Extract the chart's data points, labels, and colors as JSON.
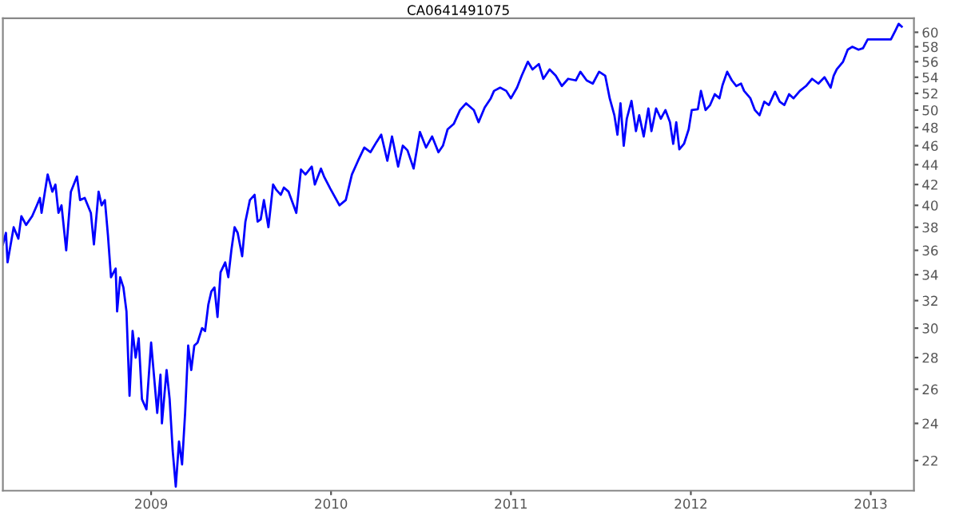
{
  "chart_data": {
    "type": "line",
    "title": "CA0641491075",
    "x": [
      2008.176,
      2008.193,
      2008.202,
      2008.236,
      2008.262,
      2008.279,
      2008.305,
      2008.339,
      2008.365,
      2008.382,
      2008.391,
      2008.425,
      2008.451,
      2008.468,
      2008.485,
      2008.502,
      2008.528,
      2008.554,
      2008.588,
      2008.605,
      2008.631,
      2008.665,
      2008.682,
      2008.708,
      2008.725,
      2008.743,
      2008.76,
      2008.777,
      2008.803,
      2008.811,
      2008.828,
      2008.846,
      2008.863,
      2008.88,
      2008.897,
      2008.914,
      2008.931,
      2008.949,
      2008.974,
      2009.0,
      2009.017,
      2009.034,
      2009.052,
      2009.06,
      2009.086,
      2009.103,
      2009.12,
      2009.137,
      2009.155,
      2009.172,
      2009.189,
      2009.206,
      2009.223,
      2009.24,
      2009.258,
      2009.283,
      2009.3,
      2009.318,
      2009.335,
      2009.352,
      2009.369,
      2009.386,
      2009.412,
      2009.429,
      2009.446,
      2009.464,
      2009.481,
      2009.506,
      2009.524,
      2009.549,
      2009.575,
      2009.592,
      2009.609,
      2009.627,
      2009.652,
      2009.678,
      2009.695,
      2009.721,
      2009.738,
      2009.764,
      2009.807,
      2009.833,
      2009.858,
      2009.893,
      2009.91,
      2009.944,
      2009.961,
      2009.996,
      2010.047,
      2010.082,
      2010.116,
      2010.15,
      2010.185,
      2010.219,
      2010.253,
      2010.279,
      2010.313,
      2010.339,
      2010.373,
      2010.399,
      2010.425,
      2010.459,
      2010.494,
      2010.528,
      2010.562,
      2010.597,
      2010.622,
      2010.648,
      2010.682,
      2010.717,
      2010.751,
      2010.794,
      2010.82,
      2010.854,
      2010.888,
      2010.906,
      2010.94,
      2010.974,
      2011.0,
      2011.034,
      2011.06,
      2011.094,
      2011.12,
      2011.155,
      2011.18,
      2011.215,
      2011.249,
      2011.283,
      2011.318,
      2011.361,
      2011.386,
      2011.421,
      2011.455,
      2011.49,
      2011.524,
      2011.549,
      2011.575,
      2011.592,
      2011.609,
      2011.627,
      2011.644,
      2011.67,
      2011.695,
      2011.713,
      2011.738,
      2011.764,
      2011.781,
      2011.807,
      2011.833,
      2011.859,
      2011.884,
      2011.902,
      2011.919,
      2011.936,
      2011.962,
      2011.988,
      2012.005,
      2012.039,
      2012.056,
      2012.082,
      2012.107,
      2012.133,
      2012.159,
      2012.176,
      2012.202,
      2012.228,
      2012.253,
      2012.279,
      2012.296,
      2012.331,
      2012.356,
      2012.382,
      2012.408,
      2012.434,
      2012.468,
      2012.494,
      2012.52,
      2012.546,
      2012.571,
      2012.606,
      2012.64,
      2012.674,
      2012.709,
      2012.743,
      2012.777,
      2012.794,
      2012.811,
      2012.846,
      2012.872,
      2012.897,
      2012.932,
      2012.957,
      2012.983,
      2013.017,
      2013.112,
      2013.138,
      2013.155,
      2013.172
    ],
    "series": [
      {
        "color": "#0000ff",
        "values": [
          36.5,
          37.5,
          35,
          38,
          37,
          39,
          38.2,
          39,
          40,
          40.7,
          39.3,
          43,
          41.3,
          42,
          39.3,
          40,
          36,
          41.3,
          42.8,
          40.5,
          40.7,
          39.3,
          36.5,
          41.3,
          40,
          40.5,
          37.3,
          33.8,
          34.5,
          31.2,
          33.8,
          33,
          31.2,
          25.6,
          29.8,
          28,
          29.3,
          25.4,
          24.8,
          29,
          26.7,
          24.6,
          26.9,
          24,
          27.2,
          25.4,
          22.5,
          20.7,
          23,
          21.8,
          24.6,
          28.8,
          27.2,
          28.8,
          29,
          30,
          29.8,
          31.7,
          32.7,
          33,
          30.8,
          34.2,
          35,
          33.8,
          36,
          38,
          37.5,
          35.5,
          38.5,
          40.5,
          41,
          38.5,
          38.7,
          40.5,
          38,
          42,
          41.5,
          41,
          41.7,
          41.3,
          39.3,
          43.5,
          43,
          43.8,
          42,
          43.6,
          42.8,
          41.6,
          40,
          40.5,
          43,
          44.4,
          45.8,
          45.3,
          46.4,
          47.2,
          44.4,
          47,
          43.8,
          46,
          45.5,
          43.6,
          47.5,
          45.8,
          47,
          45.3,
          46,
          47.8,
          48.4,
          50,
          50.8,
          50,
          48.6,
          50.3,
          51.4,
          52.3,
          52.7,
          52.3,
          51.4,
          52.7,
          54.2,
          56,
          55,
          55.7,
          53.8,
          55,
          54.2,
          52.9,
          53.8,
          53.6,
          54.7,
          53.6,
          53.2,
          54.7,
          54.2,
          51.4,
          49.4,
          47.2,
          50.8,
          46,
          49,
          51.1,
          47.6,
          49.4,
          47,
          50.2,
          47.6,
          50.2,
          49,
          50,
          48.6,
          46.2,
          48.6,
          45.6,
          46.2,
          47.8,
          50,
          50.1,
          52.3,
          50,
          50.6,
          51.9,
          51.4,
          53,
          54.7,
          53.6,
          52.9,
          53.2,
          52.3,
          51.4,
          50,
          49.4,
          51,
          50.6,
          52.2,
          51,
          50.6,
          51.9,
          51.4,
          52.3,
          52.9,
          53.8,
          53.2,
          54,
          52.7,
          54.2,
          55,
          56,
          57.6,
          58,
          57.6,
          57.8,
          59,
          59,
          59,
          60.3,
          61.2,
          60.8
        ]
      }
    ],
    "xlim": [
      2008.176,
      2013.24
    ],
    "xticks": [
      2009,
      2010,
      2011,
      2012,
      2013
    ],
    "ylim": [
      20.5,
      62
    ],
    "log": true,
    "yticks": [
      22,
      24,
      26,
      28,
      30,
      32,
      34,
      36,
      38,
      40,
      42,
      44,
      46,
      48,
      50,
      52,
      54,
      56,
      58,
      60
    ],
    "grid": false,
    "marker": "none",
    "line_style": "solid"
  }
}
